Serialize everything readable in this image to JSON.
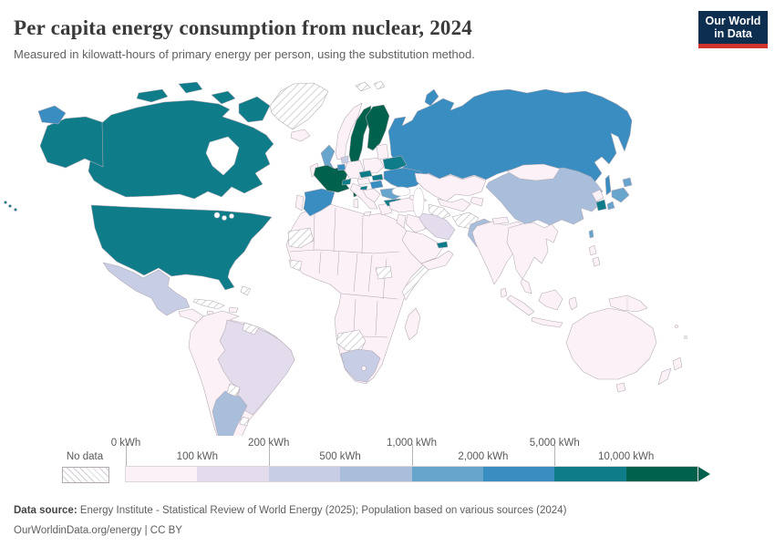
{
  "header": {
    "title": "Per capita energy consumption from nuclear, 2024",
    "subtitle": "Measured in kilowatt-hours of primary energy per person, using the substitution method.",
    "logo_line1": "Our World",
    "logo_line2": "in Data",
    "logo_bg": "#0d2e4e",
    "logo_red": "#d0342c"
  },
  "legend": {
    "no_data_label": "No data",
    "colors": [
      "#fcf1f7",
      "#e2dcec",
      "#c7cde4",
      "#a9bedb",
      "#68a5cd",
      "#3a8dc0",
      "#0f7d89",
      "#00624d"
    ],
    "ticks": [
      {
        "label": "0 kWh",
        "row": "top",
        "f": 0
      },
      {
        "label": "100 kWh",
        "row": "bottom",
        "f": 0.125
      },
      {
        "label": "200 kWh",
        "row": "top",
        "f": 0.25
      },
      {
        "label": "500 kWh",
        "row": "bottom",
        "f": 0.375
      },
      {
        "label": "1,000 kWh",
        "row": "top",
        "f": 0.5
      },
      {
        "label": "2,000 kWh",
        "row": "bottom",
        "f": 0.625
      },
      {
        "label": "5,000 kWh",
        "row": "top",
        "f": 0.75
      },
      {
        "label": "10,000 kWh",
        "row": "bottom",
        "f": 0.875
      }
    ]
  },
  "map": {
    "palette": {
      "no_data": "url(#hatch)",
      "b1": "#fcf1f7",
      "b2": "#e2dcec",
      "b3": "#c7cde4",
      "b4": "#a9bedb",
      "b5": "#68a5cd",
      "b6": "#3a8dc0",
      "b7": "#0f7d89",
      "b8": "#00624d"
    },
    "regions": {
      "greenland": "no_data",
      "svalbard": "no_data",
      "canada": "b7",
      "canada_arctic": "b7",
      "alaska": "b7",
      "hawaii": "b7",
      "usa": "b7",
      "chukotka": "b6",
      "mexico": "b3",
      "central_america": "b1",
      "cuba": "no_data",
      "bahamas": "no_data",
      "hispaniola": "b1",
      "jamaica": "b1",
      "south_america": "b1",
      "brazil": "b2",
      "argentina": "b4",
      "paraguay": "no_data",
      "uruguay": "no_data",
      "guyanas": "no_data",
      "falkland": "b1",
      "iceland": "b1",
      "norway": "b1",
      "sweden": "b8",
      "finland": "b8",
      "denmark": "b1",
      "uk": "b5",
      "ireland": "b1",
      "portugal": "b1",
      "spain": "b6",
      "france": "b8",
      "corsica": "b8",
      "netherlands": "b3",
      "belgium": "b6",
      "germany": "b1",
      "switzerland": "b7",
      "austria": "b1",
      "italy": "b1",
      "sardinia": "b1",
      "sicily": "b1",
      "poland": "b1",
      "czechia": "b7",
      "slovakia": "b7",
      "hungary": "b6",
      "slovenia": "b7",
      "balkans": "b1",
      "greece": "b1",
      "baltics": "b1",
      "belarus": "b7",
      "ukraine": "b6",
      "romania": "b5",
      "bulgaria": "b7",
      "russia": "b6",
      "sakhalin": "b6",
      "novaya_zemlya": "b6",
      "kazakhstan": "b1",
      "uzbekistan": "b1",
      "turkmenistan": "no_data",
      "kyrgyzstan": "b1",
      "afghanistan": "no_data",
      "iran": "b2",
      "turkey": "b1",
      "levant": "b1",
      "iraq": "b1",
      "saudi_arabia": "b1",
      "yemen_oman": "b1",
      "uae": "b7",
      "caucasus": "b1",
      "armenia": "b7",
      "pakistan": "b4",
      "india": "b1",
      "nepal": "b1",
      "sri_lanka": "b1",
      "china": "b4",
      "mongolia": "b1",
      "north_korea": "b1",
      "south_korea": "b7",
      "japan": "b5",
      "taiwan": "b5",
      "indochina": "b1",
      "malay_peninsula": "b1",
      "philippines": "b1",
      "indonesia": "b1",
      "new_guinea": "b1",
      "australia": "b1",
      "tasmania": "b1",
      "new_zealand": "b1",
      "pacific_islands": "b1",
      "africa": "b1",
      "madagascar": "b1",
      "south_africa": "b3",
      "lesotho": "b1",
      "western_sahara": "no_data",
      "guinea_region": "no_data",
      "somalia_region": "no_data",
      "south_sudan": "no_data",
      "namibia_botswana": "no_data"
    }
  },
  "chart_data": {
    "type": "heatmap",
    "subtype": "choropleth-world-map",
    "title": "Per capita energy consumption from nuclear, 2024",
    "unit": "kilowatt-hours of primary energy per person (substitution method)",
    "legend_position": "bottom",
    "bins": [
      {
        "label": "0-100 kWh",
        "color": "#fcf1f7",
        "countries": [
          "Norway",
          "Germany",
          "Italy",
          "Poland",
          "Portugal",
          "Ireland",
          "Denmark",
          "Iceland",
          "Greece",
          "Turkey",
          "Kazakhstan",
          "Mongolia",
          "India",
          "Indonesia",
          "Philippines",
          "Australia",
          "New Zealand",
          "Saudi Arabia",
          "Egypt",
          "Nigeria",
          "most of Africa",
          "Chile",
          "Peru",
          "Colombia",
          "Venezuela",
          "Bolivia",
          "Central America",
          "North Korea"
        ]
      },
      {
        "label": "100-200 kWh",
        "color": "#e2dcec",
        "countries": [
          "Brazil",
          "Iran"
        ]
      },
      {
        "label": "200-500 kWh",
        "color": "#c7cde4",
        "countries": [
          "Mexico",
          "Netherlands",
          "South Africa"
        ]
      },
      {
        "label": "500-1,000 kWh",
        "color": "#a9bedb",
        "countries": [
          "China",
          "Argentina",
          "Pakistan"
        ]
      },
      {
        "label": "1,000-2,000 kWh",
        "color": "#68a5cd",
        "countries": [
          "United Kingdom",
          "Japan",
          "Romania",
          "Taiwan"
        ]
      },
      {
        "label": "2,000-5,000 kWh",
        "color": "#3a8dc0",
        "countries": [
          "Russia",
          "Ukraine",
          "Spain",
          "Hungary",
          "Belgium"
        ]
      },
      {
        "label": "5,000-10,000 kWh",
        "color": "#0f7d89",
        "countries": [
          "United States",
          "Canada",
          "South Korea",
          "Switzerland",
          "Czechia",
          "Slovakia",
          "Slovenia",
          "Bulgaria",
          "Belarus",
          "United Arab Emirates",
          "Armenia"
        ]
      },
      {
        "label": "10,000+ kWh",
        "color": "#00624d",
        "countries": [
          "France",
          "Sweden",
          "Finland"
        ]
      }
    ],
    "no_data": [
      "Greenland",
      "Cuba",
      "Paraguay",
      "Uruguay",
      "Guyana",
      "Suriname",
      "Western Sahara",
      "Mauritania",
      "Somalia",
      "South Sudan",
      "Namibia",
      "Botswana",
      "Turkmenistan",
      "Afghanistan",
      "Svalbard"
    ]
  },
  "footer": {
    "source_label": "Data source:",
    "source_text": " Energy Institute - Statistical Review of World Energy (2025); Population based on various sources (2024)",
    "link_line": "OurWorldinData.org/energy | CC BY"
  }
}
